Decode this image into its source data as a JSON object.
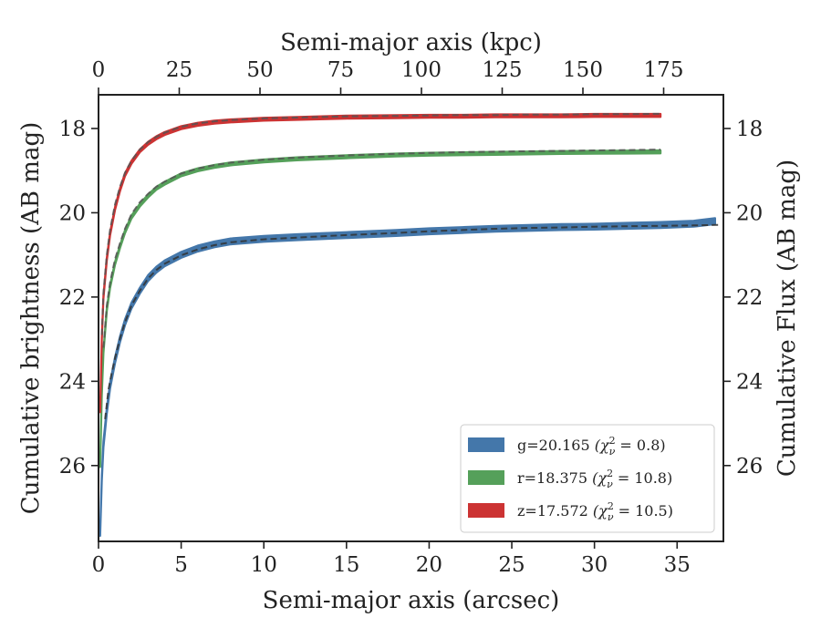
{
  "chart_data": {
    "type": "line",
    "title": "",
    "xlabel": "Semi-major axis (arcsec)",
    "ylabel": "Cumulative brightness (AB mag)",
    "x2label": "Semi-major axis (kpc)",
    "y2label": "Cumulative Flux (AB mag)",
    "xlim": [
      0,
      37.8
    ],
    "ylim": [
      27.8,
      17.2
    ],
    "y_inverted": true,
    "x2lim": [
      0,
      193.5
    ],
    "xticks": [
      "0",
      "5",
      "10",
      "15",
      "20",
      "25",
      "30",
      "35"
    ],
    "yticks": [
      "18",
      "20",
      "22",
      "24",
      "26"
    ],
    "x2ticks": [
      "0",
      "25",
      "50",
      "75",
      "100",
      "125",
      "150",
      "175"
    ],
    "y2ticks": [
      "18",
      "20",
      "22",
      "24",
      "26"
    ],
    "grid": false,
    "legend": {
      "placement": "lower-right"
    },
    "series": [
      {
        "name": "g=20.165 ($\\chi^2_\\nu = 0.8$)",
        "legend_label": "g=20.165",
        "legend_chi": "(χ",
        "legend_value": " = 0.8)",
        "color": "#4477aa",
        "band_width_mag": 0.14,
        "x": [
          0.1,
          0.2,
          0.3,
          0.5,
          0.7,
          1.0,
          1.3,
          1.6,
          2.0,
          2.5,
          3.0,
          3.5,
          4.0,
          5.0,
          6.0,
          7.0,
          8.0,
          10.0,
          12.0,
          15.0,
          18.0,
          20.0,
          22.0,
          24.0,
          26.0,
          28.0,
          30.0,
          32.0,
          34.0,
          36.0,
          37.3
        ],
        "y": [
          27.6,
          26.3,
          25.5,
          24.7,
          24.1,
          23.5,
          23.0,
          22.6,
          22.2,
          21.85,
          21.55,
          21.35,
          21.2,
          21.0,
          20.85,
          20.75,
          20.68,
          20.62,
          20.58,
          20.53,
          20.48,
          20.44,
          20.41,
          20.38,
          20.36,
          20.34,
          20.33,
          20.31,
          20.29,
          20.26,
          20.2
        ]
      },
      {
        "name": "r=18.375 ($\\chi^2_\\nu = 10.8$)",
        "legend_label": "r=18.375",
        "legend_chi": "(χ",
        "legend_value": " = 10.8)",
        "color": "#55a05a",
        "band_width_mag": 0.07,
        "x": [
          0.1,
          0.2,
          0.3,
          0.5,
          0.7,
          1.0,
          1.3,
          1.6,
          2.0,
          2.5,
          3.0,
          3.5,
          4.0,
          5.0,
          6.0,
          7.0,
          8.0,
          10.0,
          12.0,
          15.0,
          18.0,
          20.0,
          22.0,
          24.0,
          26.0,
          28.0,
          30.0,
          32.0,
          34.0
        ],
        "y": [
          26.0,
          24.3,
          23.3,
          22.3,
          21.75,
          21.2,
          20.8,
          20.45,
          20.1,
          19.82,
          19.6,
          19.42,
          19.3,
          19.1,
          18.98,
          18.9,
          18.84,
          18.77,
          18.72,
          18.67,
          18.63,
          18.61,
          18.6,
          18.59,
          18.58,
          18.57,
          18.565,
          18.56,
          18.555
        ]
      },
      {
        "name": "z=17.572 ($\\chi^2_\\nu = 10.5$)",
        "legend_label": "z=17.572",
        "legend_chi": "(χ",
        "legend_value": " = 10.5)",
        "color": "#cc3333",
        "band_width_mag": 0.07,
        "x": [
          0.1,
          0.2,
          0.3,
          0.5,
          0.7,
          1.0,
          1.3,
          1.6,
          2.0,
          2.5,
          3.0,
          3.5,
          4.0,
          5.0,
          6.0,
          7.0,
          8.0,
          10.0,
          12.0,
          15.0,
          18.0,
          20.0,
          22.0,
          24.0,
          26.0,
          28.0,
          30.0,
          32.0,
          34.0
        ],
        "y": [
          24.7,
          23.0,
          22.0,
          21.1,
          20.5,
          19.9,
          19.45,
          19.1,
          18.8,
          18.53,
          18.35,
          18.22,
          18.12,
          17.98,
          17.9,
          17.85,
          17.82,
          17.78,
          17.76,
          17.73,
          17.72,
          17.71,
          17.71,
          17.7,
          17.7,
          17.7,
          17.69,
          17.69,
          17.69
        ]
      }
    ],
    "model_lines": [
      {
        "style": "dashed",
        "color": "#333333",
        "x": [
          0.4,
          0.6,
          0.8,
          1.0,
          1.3,
          1.6,
          2.0,
          2.5,
          3.0,
          3.5,
          4.0,
          5.0,
          6.0,
          7.0,
          8.0,
          10.0,
          12.0,
          15.0,
          18.0,
          20.0,
          22.0,
          24.0,
          26.0,
          28.0,
          30.0,
          32.0,
          34.0,
          36.0,
          37.5
        ],
        "y": [
          24.9,
          24.2,
          23.8,
          23.45,
          22.98,
          22.6,
          22.2,
          21.85,
          21.56,
          21.36,
          21.21,
          21.01,
          20.87,
          20.77,
          20.7,
          20.63,
          20.59,
          20.53,
          20.48,
          20.44,
          20.41,
          20.38,
          20.36,
          20.35,
          20.33,
          20.32,
          20.31,
          20.3,
          20.29
        ]
      },
      {
        "style": "dashed",
        "color": "#555555",
        "x": [
          0.3,
          0.5,
          0.7,
          1.0,
          1.3,
          1.6,
          2.0,
          2.5,
          3.0,
          3.5,
          4.0,
          5.0,
          6.0,
          7.0,
          8.0,
          10.0,
          12.0,
          15.0,
          18.0,
          20.0,
          22.0,
          24.0,
          26.0,
          28.0,
          30.0,
          32.0,
          34.0
        ],
        "y": [
          23.2,
          22.2,
          21.65,
          21.1,
          20.72,
          20.38,
          20.03,
          19.75,
          19.55,
          19.38,
          19.26,
          19.07,
          18.95,
          18.87,
          18.81,
          18.74,
          18.69,
          18.64,
          18.6,
          18.58,
          18.56,
          18.55,
          18.54,
          18.53,
          18.52,
          18.51,
          18.5
        ]
      },
      {
        "style": "dashed",
        "color": "#555555",
        "x": [
          0.2,
          0.3,
          0.5,
          0.7,
          1.0,
          1.3,
          1.6,
          2.0,
          2.5,
          3.0,
          3.5,
          4.0,
          5.0,
          6.0,
          7.0,
          8.0,
          10.0,
          12.0,
          15.0,
          18.0,
          20.0,
          22.0,
          24.0,
          26.0,
          28.0,
          30.0,
          32.0,
          34.0
        ],
        "y": [
          22.9,
          21.9,
          21.0,
          20.4,
          19.8,
          19.38,
          19.05,
          18.76,
          18.5,
          18.32,
          18.2,
          18.1,
          17.96,
          17.88,
          17.83,
          17.8,
          17.76,
          17.74,
          17.71,
          17.7,
          17.69,
          17.68,
          17.68,
          17.67,
          17.67,
          17.66,
          17.66,
          17.65
        ]
      }
    ]
  }
}
